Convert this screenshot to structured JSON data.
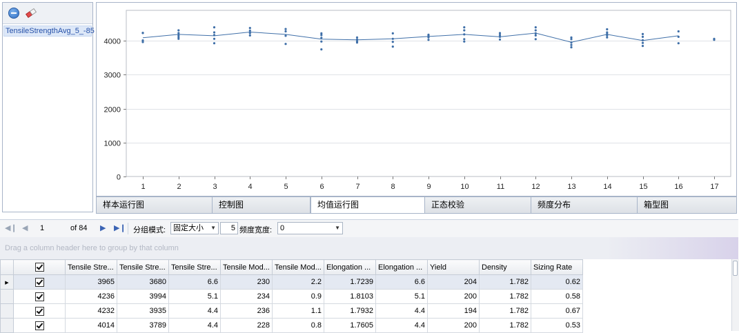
{
  "left_panel": {
    "series_label": "TensileStrengthAvg_5_-85"
  },
  "chart_data": {
    "type": "line",
    "title": "",
    "xlabel": "",
    "ylabel": "",
    "ylim": [
      0,
      4900
    ],
    "yticks": [
      0,
      1000,
      2000,
      3000,
      4000
    ],
    "xticks": [
      1,
      2,
      3,
      4,
      5,
      6,
      7,
      8,
      9,
      10,
      11,
      12,
      13,
      14,
      15,
      16,
      17
    ],
    "series": [
      {
        "name": "",
        "kind": "mean-line",
        "x": [
          1,
          2,
          3,
          4,
          5,
          6,
          7,
          8,
          9,
          10,
          11,
          12,
          13,
          14,
          15,
          16
        ],
        "values": [
          4090,
          4190,
          4150,
          4260,
          4190,
          4050,
          4030,
          4060,
          4130,
          4190,
          4120,
          4230,
          3960,
          4190,
          4010,
          4150
        ]
      },
      {
        "name": "",
        "kind": "samples",
        "points": [
          [
            1,
            3965
          ],
          [
            1,
            4236
          ],
          [
            1,
            4232
          ],
          [
            1,
            4014
          ],
          [
            2,
            4060
          ],
          [
            2,
            4110
          ],
          [
            2,
            4160
          ],
          [
            2,
            4230
          ],
          [
            2,
            4310
          ],
          [
            3,
            3930
          ],
          [
            3,
            4060
          ],
          [
            3,
            4170
          ],
          [
            3,
            4250
          ],
          [
            3,
            4400
          ],
          [
            4,
            4160
          ],
          [
            4,
            4230
          ],
          [
            4,
            4300
          ],
          [
            4,
            4380
          ],
          [
            5,
            3910
          ],
          [
            5,
            4150
          ],
          [
            5,
            4280
          ],
          [
            5,
            4350
          ],
          [
            6,
            3750
          ],
          [
            6,
            3980
          ],
          [
            6,
            4090
          ],
          [
            6,
            4170
          ],
          [
            6,
            4220
          ],
          [
            7,
            3950
          ],
          [
            7,
            3990
          ],
          [
            7,
            4040
          ],
          [
            7,
            4100
          ],
          [
            8,
            3830
          ],
          [
            8,
            3970
          ],
          [
            8,
            4060
          ],
          [
            8,
            4220
          ],
          [
            9,
            4030
          ],
          [
            9,
            4100
          ],
          [
            9,
            4150
          ],
          [
            9,
            4180
          ],
          [
            10,
            3980
          ],
          [
            10,
            4050
          ],
          [
            10,
            4190
          ],
          [
            10,
            4310
          ],
          [
            10,
            4400
          ],
          [
            11,
            4040
          ],
          [
            11,
            4120
          ],
          [
            11,
            4170
          ],
          [
            11,
            4230
          ],
          [
            12,
            4050
          ],
          [
            12,
            4160
          ],
          [
            12,
            4220
          ],
          [
            12,
            4310
          ],
          [
            12,
            4400
          ],
          [
            13,
            3810
          ],
          [
            13,
            3880
          ],
          [
            13,
            3950
          ],
          [
            13,
            4050
          ],
          [
            13,
            4100
          ],
          [
            14,
            4100
          ],
          [
            14,
            4160
          ],
          [
            14,
            4200
          ],
          [
            14,
            4250
          ],
          [
            14,
            4340
          ],
          [
            15,
            3850
          ],
          [
            15,
            3940
          ],
          [
            15,
            4020
          ],
          [
            15,
            4120
          ],
          [
            15,
            4200
          ],
          [
            16,
            3930
          ],
          [
            16,
            4120
          ],
          [
            16,
            4280
          ],
          [
            17,
            4030
          ],
          [
            17,
            4060
          ]
        ]
      }
    ],
    "grid": true,
    "legend": "none",
    "color": "#3f6fa8"
  },
  "tabs": [
    "样本运行图",
    "控制图",
    "均值运行图",
    "正态校验",
    "频度分布",
    "箱型图"
  ],
  "active_tab": "均值运行图",
  "pager": {
    "page": "1",
    "of_text": "of 84",
    "group_mode_label": "分组模式:",
    "group_mode_value": "固定大小",
    "size_value": "5",
    "freq_width_label": "频度宽度:",
    "freq_width_value": "0"
  },
  "group_panel_text": "Drag a column header here to group by that column",
  "grid": {
    "columns": [
      "Tensile Stre...",
      "Tensile Stre...",
      "Tensile Stre...",
      "Tensile Mod...",
      "Tensile Mod...",
      "Elongation ...",
      "Elongation ...",
      "Yield",
      "Density",
      "Sizing Rate"
    ],
    "rows": [
      [
        "3965",
        "3680",
        "6.6",
        "230",
        "2.2",
        "1.7239",
        "6.6",
        "204",
        "1.782",
        "0.62"
      ],
      [
        "4236",
        "3994",
        "5.1",
        "234",
        "0.9",
        "1.8103",
        "5.1",
        "200",
        "1.782",
        "0.58"
      ],
      [
        "4232",
        "3935",
        "4.4",
        "236",
        "1.1",
        "1.7932",
        "4.4",
        "194",
        "1.782",
        "0.67"
      ],
      [
        "4014",
        "3789",
        "4.4",
        "228",
        "0.8",
        "1.7605",
        "4.4",
        "200",
        "1.782",
        "0.53"
      ]
    ]
  },
  "colors": {
    "accent": "#3b64b4",
    "line": "#3f6fa8"
  }
}
